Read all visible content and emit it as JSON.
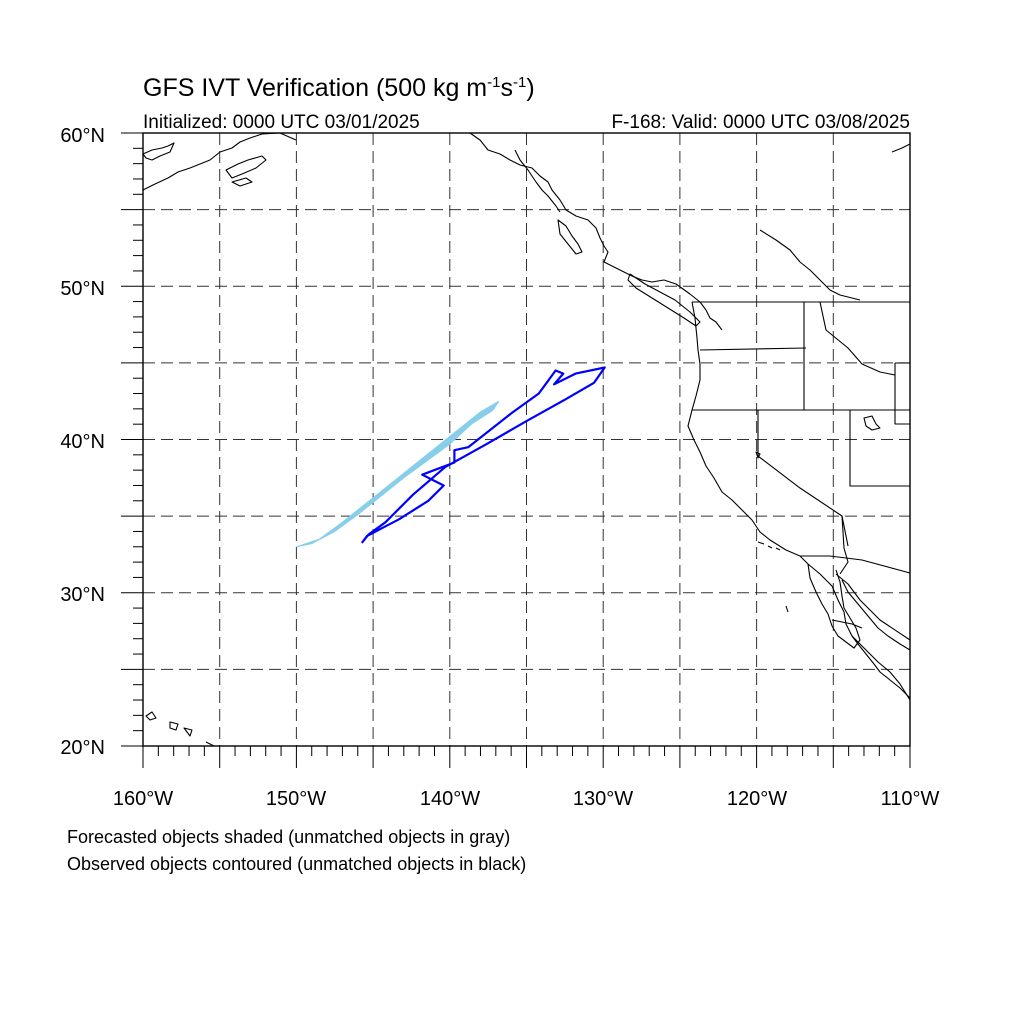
{
  "title": {
    "main": "GFS IVT Verification (500 kg m",
    "sup1": "-1",
    "mid": "s",
    "sup2": "-1",
    "end": ")"
  },
  "initialized": "Initialized: 0000 UTC 03/01/2025",
  "valid": "F-168: Valid: 0000 UTC 03/08/2025",
  "map": {
    "lon_range": [
      -160,
      -110
    ],
    "lat_range": [
      20,
      60
    ],
    "gridline_style": "dashed",
    "forecast_object_color": "#87ceeb",
    "observed_object_color": "#0000ff",
    "coastline_color": "#000000"
  },
  "axes": {
    "lat_labels": [
      "20°N",
      "30°N",
      "40°N",
      "50°N",
      "60°N"
    ],
    "lon_labels": [
      "160°W",
      "150°W",
      "140°W",
      "130°W",
      "120°W",
      "110°W"
    ]
  },
  "footer": {
    "line1": "Forecasted objects shaded (unmatched objects in gray)",
    "line2": "Observed objects contoured (unmatched objects in black)"
  },
  "chart_data": {
    "type": "map",
    "forecast_object": {
      "lonlat": [
        [
          -150.0,
          33.0
        ],
        [
          -148.5,
          33.5
        ],
        [
          -147.0,
          34.6
        ],
        [
          -145.5,
          35.8
        ],
        [
          -144.0,
          37.0
        ],
        [
          -142.5,
          38.2
        ],
        [
          -141.0,
          39.4
        ],
        [
          -139.5,
          40.6
        ],
        [
          -138.0,
          41.8
        ],
        [
          -136.8,
          42.5
        ],
        [
          -137.2,
          41.9
        ],
        [
          -138.6,
          41.0
        ],
        [
          -140.0,
          39.7
        ],
        [
          -141.5,
          38.6
        ],
        [
          -143.0,
          37.5
        ],
        [
          -144.5,
          36.3
        ],
        [
          -146.0,
          35.1
        ],
        [
          -147.5,
          34.0
        ],
        [
          -149.0,
          33.2
        ]
      ]
    },
    "observed_object": {
      "lonlat": [
        [
          -145.7,
          33.3
        ],
        [
          -145.4,
          33.7
        ],
        [
          -143.3,
          34.8
        ],
        [
          -141.4,
          36.0
        ],
        [
          -140.4,
          37.0
        ],
        [
          -141.8,
          37.7
        ],
        [
          -139.7,
          38.5
        ],
        [
          -139.7,
          39.3
        ],
        [
          -138.8,
          39.5
        ],
        [
          -136.0,
          41.7
        ],
        [
          -134.2,
          43.0
        ],
        [
          -133.1,
          44.5
        ],
        [
          -132.6,
          44.3
        ],
        [
          -133.2,
          43.6
        ],
        [
          -131.8,
          44.3
        ],
        [
          -129.9,
          44.7
        ],
        [
          -130.6,
          43.7
        ],
        [
          -132.5,
          42.6
        ],
        [
          -135.0,
          41.2
        ],
        [
          -137.6,
          39.7
        ],
        [
          -140.3,
          38.2
        ],
        [
          -142.4,
          36.4
        ],
        [
          -144.2,
          34.6
        ],
        [
          -145.3,
          33.8
        ]
      ]
    }
  }
}
